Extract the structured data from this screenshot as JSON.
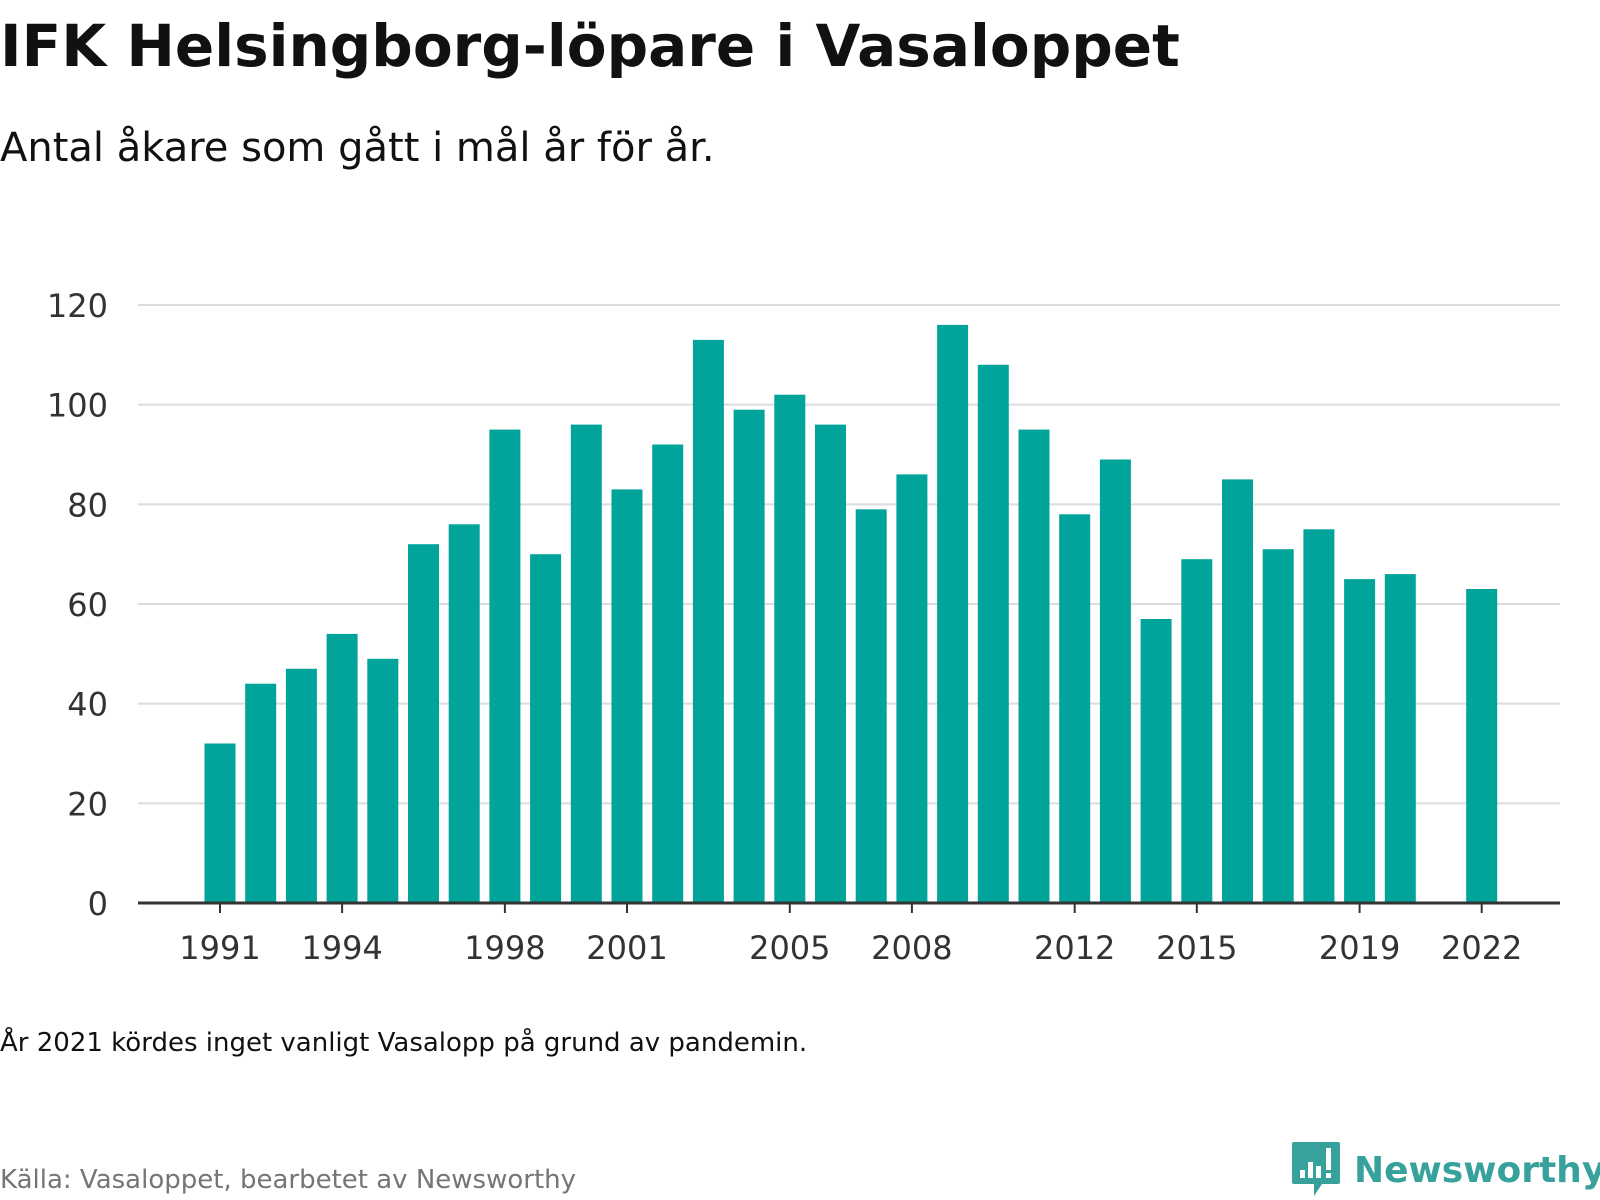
{
  "title": "IFK Helsingborg-löpare i Vasaloppet",
  "subtitle": "Antal åkare som gått i mål år för år.",
  "note": "År 2021 kördes inget vanligt Vasalopp på grund av pandemin.",
  "source": "Källa: Vasaloppet, bearbetet av Newsworthy",
  "logo": {
    "text": "Newsworthy",
    "icon": "newsworthy-logo-icon",
    "color": "#37a29b"
  },
  "colors": {
    "bar": "#00a49a",
    "grid": "#dcdcdc",
    "axis": "#333333",
    "tick_text": "#333333"
  },
  "chart_data": {
    "type": "bar",
    "categories": [
      1991,
      1992,
      1993,
      1994,
      1995,
      1996,
      1997,
      1998,
      1999,
      2000,
      2001,
      2002,
      2003,
      2004,
      2005,
      2006,
      2007,
      2008,
      2009,
      2010,
      2011,
      2012,
      2013,
      2014,
      2015,
      2016,
      2017,
      2018,
      2019,
      2020,
      2021,
      2022
    ],
    "values": [
      32,
      44,
      47,
      54,
      49,
      72,
      76,
      95,
      70,
      96,
      83,
      92,
      113,
      99,
      102,
      96,
      79,
      86,
      116,
      108,
      95,
      78,
      89,
      57,
      69,
      85,
      71,
      75,
      65,
      66,
      null,
      63
    ],
    "x_tick_labels": [
      "1991",
      "1994",
      "1998",
      "2001",
      "2005",
      "2008",
      "2012",
      "2015",
      "2019",
      "2022"
    ],
    "y_ticks": [
      0,
      20,
      40,
      60,
      80,
      100,
      120
    ],
    "ylim": [
      0,
      120
    ],
    "title": "IFK Helsingborg-löpare i Vasaloppet",
    "subtitle": "Antal åkare som gått i mål år för år.",
    "xlabel": "",
    "ylabel": "",
    "grid": true,
    "legend": false
  }
}
